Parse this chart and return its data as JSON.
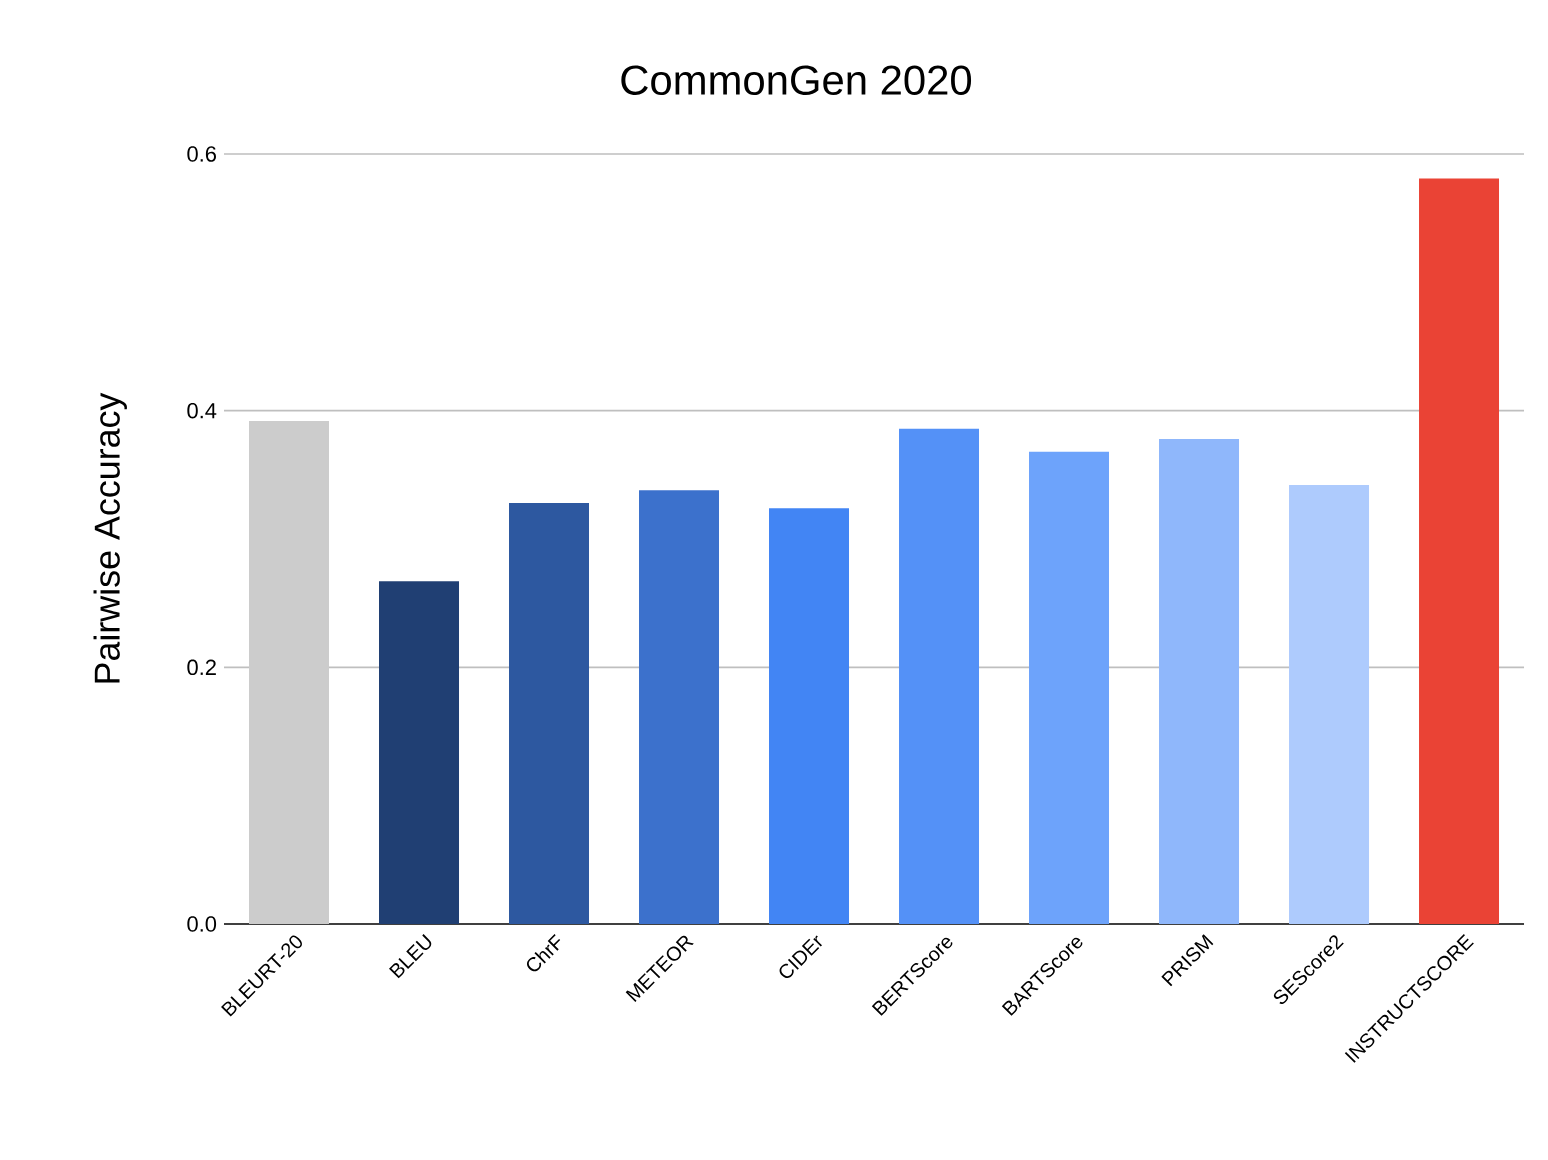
{
  "chart_data": {
    "type": "bar",
    "title": "CommonGen 2020",
    "ylabel": "Pairwise Accuracy",
    "categories": [
      "BLEURT-20",
      "BLEU",
      "ChrF",
      "METEOR",
      "CIDEr",
      "BERTScore",
      "BARTScore",
      "PRISM",
      "SEScore2",
      "INSTRUCTSCORE"
    ],
    "values": [
      0.392,
      0.267,
      0.328,
      0.338,
      0.324,
      0.386,
      0.368,
      0.378,
      0.342,
      0.581
    ],
    "colors": [
      "#cccccc",
      "#203f73",
      "#2d58a0",
      "#3c71cc",
      "#4285f4",
      "#5491f7",
      "#6da3fb",
      "#8fb7fb",
      "#aecbfd",
      "#ea4335"
    ],
    "ylim": [
      0,
      0.6
    ],
    "yticks": [
      {
        "value": 0,
        "label": "0.0"
      },
      0.2,
      0.4,
      0.6
    ],
    "grid": "y"
  }
}
